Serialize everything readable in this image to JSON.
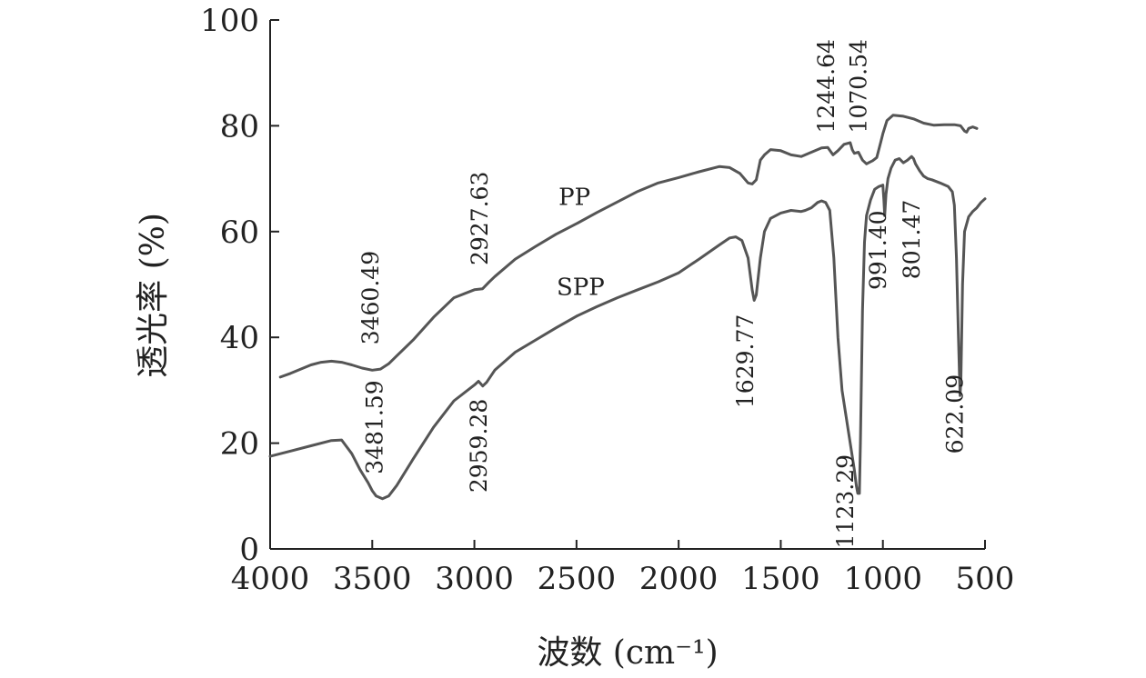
{
  "chart_data": {
    "type": "line",
    "title": "",
    "xlabel": "波数 (cm⁻¹)",
    "ylabel": "透光率 (%)",
    "xlim": [
      4000,
      500
    ],
    "ylim": [
      0,
      100
    ],
    "x_reversed": true,
    "xticks": [
      "4000",
      "3500",
      "3000",
      "2500",
      "2000",
      "1500",
      "1000",
      "500"
    ],
    "yticks": [
      "0",
      "20",
      "40",
      "60",
      "80",
      "100"
    ],
    "line_color": "#555555",
    "series": [
      {
        "name": "PP",
        "x": [
          3950,
          3900,
          3850,
          3800,
          3750,
          3700,
          3650,
          3600,
          3550,
          3500,
          3460,
          3420,
          3380,
          3300,
          3200,
          3100,
          3000,
          2960,
          2927,
          2900,
          2800,
          2700,
          2600,
          2500,
          2400,
          2300,
          2200,
          2100,
          2000,
          1900,
          1800,
          1750,
          1700,
          1660,
          1640,
          1620,
          1600,
          1580,
          1550,
          1500,
          1450,
          1400,
          1350,
          1300,
          1270,
          1244,
          1220,
          1190,
          1160,
          1150,
          1140,
          1120,
          1100,
          1080,
          1070,
          1050,
          1030,
          1010,
          1000,
          980,
          950,
          900,
          850,
          800,
          750,
          700,
          650,
          620,
          600,
          590,
          580,
          560,
          540
        ],
        "y": [
          32.5,
          33.2,
          34.0,
          34.8,
          35.3,
          35.5,
          35.3,
          34.8,
          34.2,
          33.8,
          34.0,
          35.0,
          36.5,
          39.5,
          43.8,
          47.5,
          49.0,
          49.2,
          50.5,
          51.5,
          54.8,
          57.2,
          59.5,
          61.5,
          63.6,
          65.6,
          67.6,
          69.2,
          70.2,
          71.3,
          72.3,
          72.1,
          71.0,
          69.2,
          69.0,
          69.8,
          73.5,
          74.5,
          75.5,
          75.3,
          74.5,
          74.2,
          75.0,
          75.8,
          75.9,
          74.5,
          75.3,
          76.5,
          76.8,
          75.5,
          74.8,
          75.0,
          73.5,
          72.8,
          73.0,
          73.4,
          74.0,
          77.0,
          78.5,
          81.0,
          82.0,
          81.8,
          81.3,
          80.5,
          80.1,
          80.2,
          80.2,
          80.0,
          79.0,
          78.8,
          79.5,
          79.8,
          79.5
        ]
      },
      {
        "name": "SPP",
        "x": [
          4000,
          3900,
          3800,
          3700,
          3650,
          3600,
          3560,
          3520,
          3500,
          3481,
          3450,
          3420,
          3380,
          3300,
          3200,
          3100,
          3000,
          2980,
          2959,
          2940,
          2900,
          2800,
          2700,
          2600,
          2500,
          2400,
          2300,
          2200,
          2100,
          2000,
          1900,
          1800,
          1750,
          1720,
          1690,
          1660,
          1640,
          1630,
          1620,
          1600,
          1580,
          1550,
          1500,
          1450,
          1400,
          1380,
          1350,
          1320,
          1300,
          1280,
          1260,
          1240,
          1220,
          1200,
          1180,
          1160,
          1140,
          1130,
          1123,
          1115,
          1110,
          1100,
          1090,
          1080,
          1060,
          1040,
          1020,
          1000,
          995,
          991,
          985,
          975,
          960,
          940,
          920,
          900,
          880,
          860,
          850,
          840,
          820,
          801,
          780,
          760,
          720,
          680,
          660,
          650,
          640,
          630,
          625,
          622,
          618,
          610,
          600,
          580,
          560,
          540,
          520,
          500
        ],
        "y": [
          17.5,
          18.5,
          19.5,
          20.5,
          20.6,
          18.0,
          15.0,
          12.5,
          11.0,
          10.0,
          9.5,
          10.0,
          12.0,
          17.0,
          23.0,
          28.0,
          31.0,
          31.7,
          30.8,
          31.5,
          33.8,
          37.2,
          39.5,
          41.8,
          44.0,
          45.8,
          47.5,
          49.0,
          50.5,
          52.2,
          54.8,
          57.5,
          58.8,
          59.0,
          58.3,
          55.0,
          49.0,
          47.0,
          48.0,
          55.0,
          60.0,
          62.5,
          63.5,
          64.0,
          63.8,
          64.0,
          64.5,
          65.5,
          65.8,
          65.5,
          64.0,
          55.0,
          40.0,
          30.0,
          25.0,
          20.0,
          15.0,
          12.0,
          10.5,
          10.5,
          20.0,
          45.0,
          58.0,
          63.0,
          66.0,
          68.0,
          68.5,
          68.8,
          66.0,
          63.0,
          67.0,
          70.0,
          72.0,
          73.5,
          73.8,
          73.0,
          73.5,
          74.2,
          73.8,
          72.8,
          71.5,
          70.5,
          70.0,
          69.8,
          69.2,
          68.5,
          67.5,
          65.0,
          55.0,
          40.0,
          33.0,
          29.0,
          32.0,
          50.0,
          60.0,
          62.8,
          63.8,
          64.5,
          65.5,
          66.2
        ]
      }
    ],
    "annotations": [
      {
        "text": "3460.49",
        "x": 3470,
        "y": 47.5
      },
      {
        "text": "2927.63",
        "x": 2935,
        "y": 62.5
      },
      {
        "text": "1244.64",
        "x": 1240,
        "y": 87.5
      },
      {
        "text": "1070.54",
        "x": 1080,
        "y": 87.5
      },
      {
        "text": "3481.59",
        "x": 3450,
        "y": 23.0
      },
      {
        "text": "2959.28",
        "x": 2940,
        "y": 19.5
      },
      {
        "text": "1629.77",
        "x": 1635,
        "y": 35.5
      },
      {
        "text": "1123.29",
        "x": 1145,
        "y": 9.0
      },
      {
        "text": "991.40",
        "x": 985,
        "y": 56.5
      },
      {
        "text": "801.47",
        "x": 820,
        "y": 58.5
      },
      {
        "text": "622.09",
        "x": 610,
        "y": 25.5
      },
      {
        "text": "PP",
        "x": 2510,
        "y": 65.0,
        "kind": "series-label"
      },
      {
        "text": "SPP",
        "x": 2480,
        "y": 48.0,
        "kind": "series-label"
      }
    ]
  }
}
